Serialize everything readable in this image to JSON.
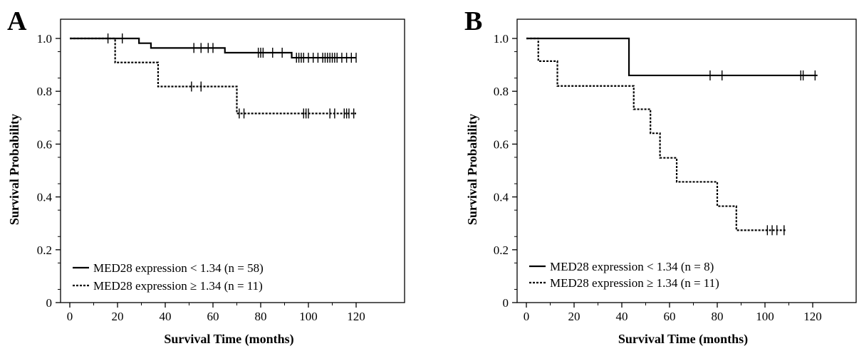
{
  "chart_data": [
    {
      "panel": "A",
      "type": "line",
      "subtype": "kaplan-meier step",
      "title": "",
      "xlabel": "Survival Time (months)",
      "ylabel": "Survival Probability",
      "xlim": [
        0,
        120
      ],
      "ylim": [
        0,
        1.0
      ],
      "xticks": [
        "0",
        "20",
        "40",
        "60",
        "80",
        "100",
        "120"
      ],
      "yticks": [
        "0",
        "0.2",
        "0.4",
        "0.6",
        "0.8",
        "1.0"
      ],
      "grid": false,
      "legend_position": "bottom-left",
      "series": [
        {
          "name": "MED28 expression < 1.34 (n = 58)",
          "line_style": "solid",
          "steps": [
            [
              0,
              1.0
            ],
            [
              29,
              0.982
            ],
            [
              34,
              0.964
            ],
            [
              65,
              0.946
            ],
            [
              93,
              0.927
            ],
            [
              120,
              0.927
            ]
          ],
          "censored": [
            [
              16,
              1.0
            ],
            [
              22,
              1.0
            ],
            [
              52,
              0.964
            ],
            [
              55,
              0.964
            ],
            [
              58,
              0.964
            ],
            [
              60,
              0.964
            ],
            [
              79,
              0.946
            ],
            [
              80,
              0.946
            ],
            [
              81,
              0.946
            ],
            [
              85,
              0.946
            ],
            [
              89,
              0.946
            ],
            [
              95,
              0.927
            ],
            [
              96,
              0.927
            ],
            [
              97,
              0.927
            ],
            [
              98,
              0.927
            ],
            [
              100,
              0.927
            ],
            [
              102,
              0.927
            ],
            [
              104,
              0.927
            ],
            [
              106,
              0.927
            ],
            [
              107,
              0.927
            ],
            [
              108,
              0.927
            ],
            [
              109,
              0.927
            ],
            [
              110,
              0.927
            ],
            [
              111,
              0.927
            ],
            [
              112,
              0.927
            ],
            [
              114,
              0.927
            ],
            [
              116,
              0.927
            ],
            [
              118,
              0.927
            ],
            [
              120,
              0.927
            ]
          ]
        },
        {
          "name": "MED28 expression ≥ 1.34 (n = 11)",
          "line_style": "dotted",
          "steps": [
            [
              0,
              1.0
            ],
            [
              19,
              0.909
            ],
            [
              37,
              0.818
            ],
            [
              70,
              0.716
            ],
            [
              120,
              0.716
            ]
          ],
          "censored": [
            [
              51,
              0.818
            ],
            [
              55,
              0.818
            ],
            [
              71,
              0.716
            ],
            [
              73,
              0.716
            ],
            [
              98,
              0.716
            ],
            [
              99,
              0.716
            ],
            [
              100,
              0.716
            ],
            [
              109,
              0.716
            ],
            [
              111,
              0.716
            ],
            [
              115,
              0.716
            ],
            [
              116,
              0.716
            ],
            [
              117,
              0.716
            ],
            [
              119,
              0.716
            ]
          ]
        }
      ]
    },
    {
      "panel": "B",
      "type": "line",
      "subtype": "kaplan-meier step",
      "title": "",
      "xlabel": "Survival Time (months)",
      "ylabel": "Survival Probability",
      "xlim": [
        0,
        120
      ],
      "ylim": [
        0,
        1.0
      ],
      "xticks": [
        "0",
        "20",
        "40",
        "60",
        "80",
        "100",
        "120"
      ],
      "yticks": [
        "0",
        "0.2",
        "0.4",
        "0.6",
        "0.8",
        "1.0"
      ],
      "grid": false,
      "legend_position": "bottom-left",
      "series": [
        {
          "name": "MED28 expression < 1.34 (n = 8)",
          "line_style": "solid",
          "steps": [
            [
              0,
              1.0
            ],
            [
              43,
              0.86
            ],
            [
              122,
              0.86
            ]
          ],
          "censored": [
            [
              77,
              0.86
            ],
            [
              82,
              0.86
            ],
            [
              115,
              0.86
            ],
            [
              116,
              0.86
            ],
            [
              121,
              0.86
            ]
          ]
        },
        {
          "name": "MED28 expression ≥ 1.34 (n = 11)",
          "line_style": "dotted",
          "steps": [
            [
              0,
              1.0
            ],
            [
              5,
              0.914
            ],
            [
              13,
              0.82
            ],
            [
              45,
              0.732
            ],
            [
              52,
              0.641
            ],
            [
              56,
              0.548
            ],
            [
              63,
              0.457
            ],
            [
              80,
              0.365
            ],
            [
              88,
              0.274
            ],
            [
              109,
              0.274
            ]
          ],
          "censored": [
            [
              101,
              0.274
            ],
            [
              103,
              0.274
            ],
            [
              105,
              0.274
            ],
            [
              108,
              0.274
            ]
          ]
        }
      ]
    }
  ]
}
